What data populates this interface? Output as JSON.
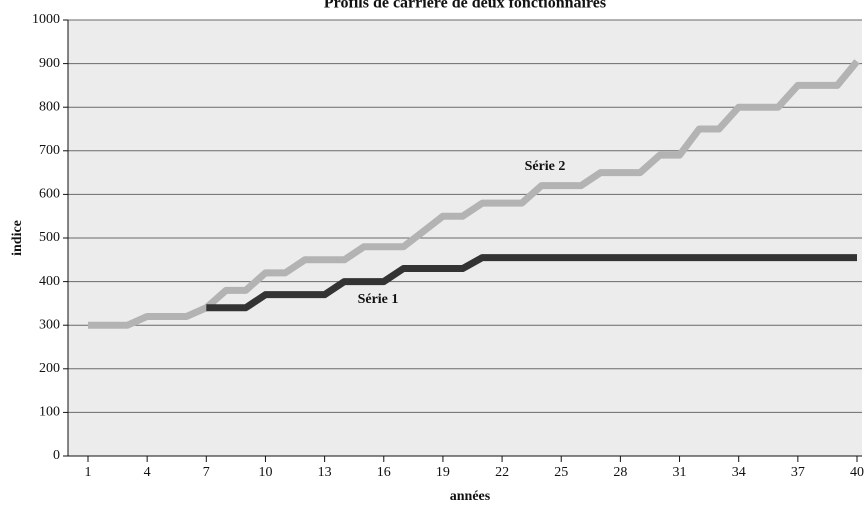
{
  "chart_data": {
    "type": "line",
    "title": "Profils de carrière de deux fonctionnaires",
    "xlabel": "années",
    "ylabel": "indice",
    "x": [
      1,
      2,
      3,
      4,
      5,
      6,
      7,
      8,
      9,
      10,
      11,
      12,
      13,
      14,
      15,
      16,
      17,
      18,
      19,
      20,
      21,
      22,
      23,
      24,
      25,
      26,
      27,
      28,
      29,
      30,
      31,
      32,
      33,
      34,
      35,
      36,
      37,
      38,
      39,
      40
    ],
    "series": [
      {
        "name": "Série 2",
        "color": "#b3b3b3",
        "values": [
          300,
          300,
          300,
          320,
          320,
          320,
          340,
          380,
          380,
          420,
          420,
          450,
          450,
          450,
          480,
          480,
          480,
          515,
          550,
          550,
          580,
          580,
          580,
          620,
          620,
          620,
          650,
          650,
          650,
          690,
          690,
          750,
          750,
          800,
          800,
          800,
          850,
          850,
          850,
          905
        ]
      },
      {
        "name": "Série 1",
        "color": "#333333",
        "values": [
          null,
          null,
          null,
          null,
          null,
          null,
          340,
          340,
          340,
          370,
          370,
          370,
          370,
          400,
          400,
          400,
          430,
          430,
          430,
          430,
          455,
          455,
          455,
          455,
          455,
          455,
          455,
          455,
          455,
          455,
          455,
          455,
          455,
          455,
          455,
          455,
          455,
          455,
          455,
          455
        ]
      }
    ],
    "xlim": [
      1,
      40
    ],
    "xticks": [
      1,
      4,
      7,
      10,
      13,
      16,
      19,
      22,
      25,
      28,
      31,
      34,
      37,
      40
    ],
    "ylim": [
      0,
      1000
    ],
    "yticks": [
      0,
      100,
      200,
      300,
      400,
      500,
      600,
      700,
      800,
      900,
      1000
    ],
    "grid": true
  }
}
